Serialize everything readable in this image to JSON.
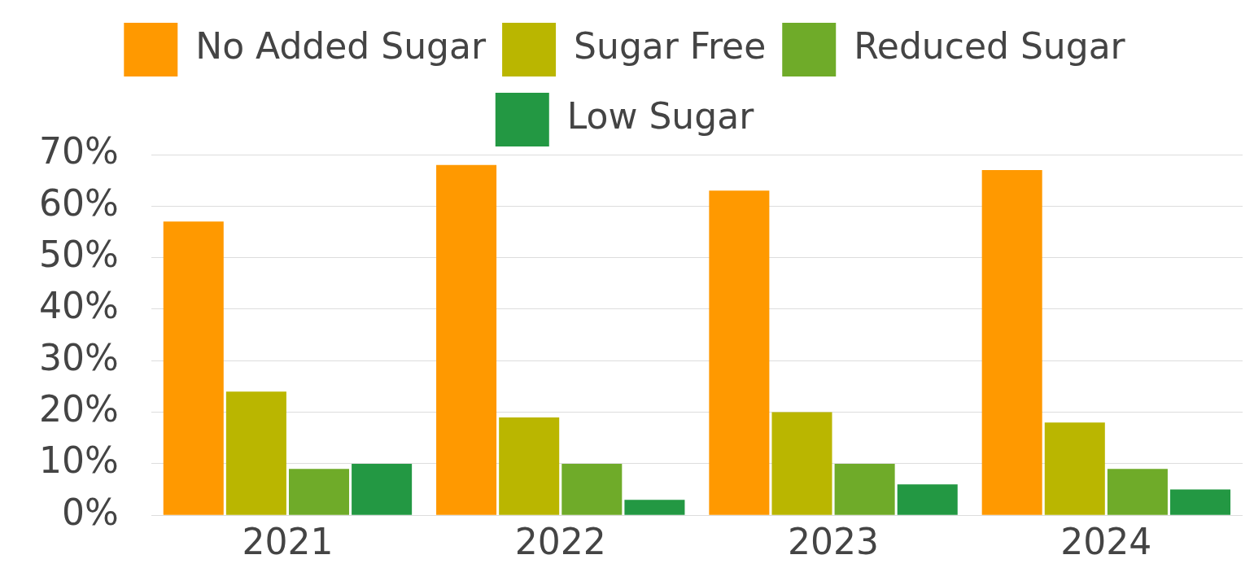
{
  "chart_data": {
    "type": "bar",
    "categories": [
      "2021",
      "2022",
      "2023",
      "2024"
    ],
    "series": [
      {
        "name": "No Added Sugar",
        "color": "#ff9900",
        "values": [
          57,
          68,
          63,
          67
        ]
      },
      {
        "name": "Sugar Free",
        "color": "#bab600",
        "values": [
          24,
          19,
          20,
          18
        ]
      },
      {
        "name": "Reduced Sugar",
        "color": "#6fab29",
        "values": [
          9,
          10,
          10,
          9
        ]
      },
      {
        "name": "Low Sugar",
        "color": "#239843",
        "values": [
          10,
          3,
          6,
          5
        ]
      }
    ],
    "ylim": [
      0,
      70
    ],
    "yticks": [
      {
        "value": 0,
        "label": "0%"
      },
      {
        "value": 10,
        "label": "10%"
      },
      {
        "value": 20,
        "label": "20%"
      },
      {
        "value": 30,
        "label": "30%"
      },
      {
        "value": 40,
        "label": "40%"
      },
      {
        "value": 50,
        "label": "50%"
      },
      {
        "value": 60,
        "label": "60%"
      },
      {
        "value": 70,
        "label": "70%"
      }
    ],
    "grid": "y",
    "legend": "top"
  }
}
